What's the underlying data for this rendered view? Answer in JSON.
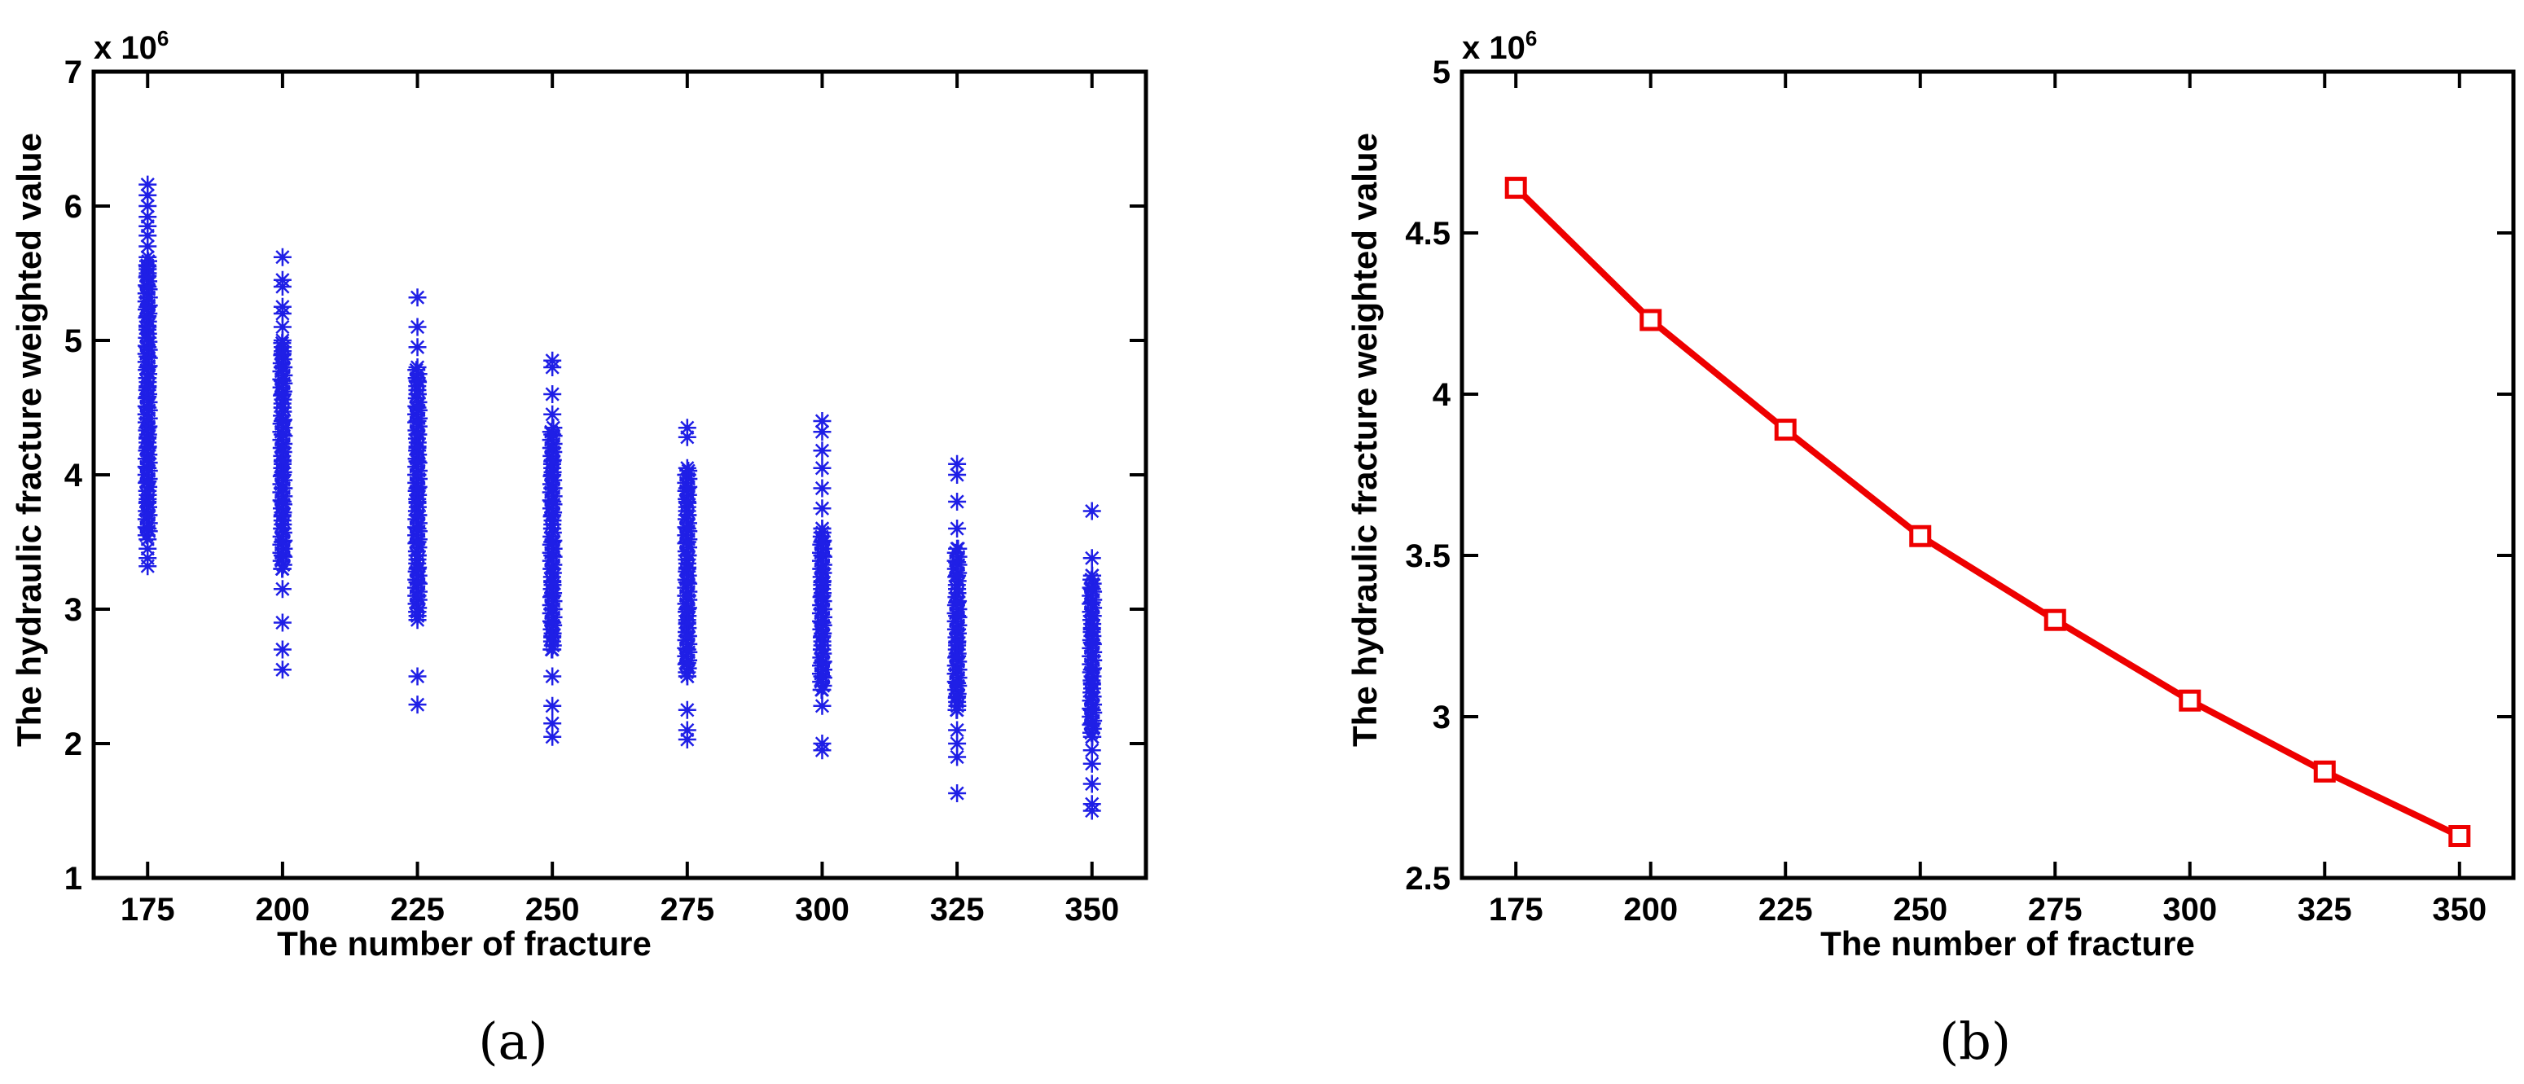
{
  "panels": [
    {
      "label": "(a)"
    },
    {
      "label": "(b)"
    }
  ],
  "chart_data": [
    {
      "type": "scatter",
      "title": "",
      "xlabel": "The number of fracture",
      "ylabel": "The hydraulic fracture weighted value",
      "y_multiplier": {
        "base": "x 10",
        "exponent": "6"
      },
      "xlim": [
        165,
        360
      ],
      "ylim": [
        1,
        7
      ],
      "xticks": [
        175,
        200,
        225,
        250,
        275,
        300,
        325,
        350
      ],
      "yticks": [
        1,
        2,
        3,
        4,
        5,
        6,
        7
      ],
      "marker": "asterisk",
      "color": "#1f1fe6",
      "groups": [
        {
          "x": 175,
          "min": 3.32,
          "max": 6.16,
          "dense_min": 3.55,
          "dense_max": 5.6,
          "points": [
            3.32,
            3.38,
            3.45,
            3.52,
            3.6,
            3.7,
            3.8,
            3.88,
            3.95,
            4.05,
            4.12,
            4.2,
            4.28,
            4.35,
            4.42,
            4.5,
            4.58,
            4.65,
            4.72,
            4.8,
            4.88,
            4.95,
            5.02,
            5.1,
            5.18,
            5.25,
            5.32,
            5.4,
            5.48,
            5.55,
            5.62,
            5.7,
            5.78,
            5.85,
            5.92,
            6.0,
            6.08,
            6.16
          ]
        },
        {
          "x": 200,
          "min": 2.55,
          "max": 5.62,
          "dense_min": 3.3,
          "dense_max": 5.0,
          "points": [
            2.55,
            2.7,
            2.9,
            3.15,
            3.3,
            3.4,
            3.5,
            3.6,
            3.7,
            3.8,
            3.9,
            4.0,
            4.1,
            4.2,
            4.3,
            4.4,
            4.5,
            4.6,
            4.7,
            4.8,
            4.9,
            5.0,
            5.1,
            5.2,
            5.25,
            5.4,
            5.45,
            5.62
          ]
        },
        {
          "x": 225,
          "min": 2.29,
          "max": 5.32,
          "dense_min": 2.95,
          "dense_max": 4.8,
          "points": [
            2.29,
            2.5,
            2.92,
            2.98,
            3.1,
            3.2,
            3.3,
            3.4,
            3.5,
            3.6,
            3.7,
            3.8,
            3.9,
            4.0,
            4.1,
            4.2,
            4.3,
            4.4,
            4.5,
            4.6,
            4.7,
            4.8,
            4.95,
            5.1,
            5.32
          ]
        },
        {
          "x": 250,
          "min": 2.05,
          "max": 4.85,
          "dense_min": 2.7,
          "dense_max": 4.35,
          "points": [
            2.05,
            2.15,
            2.28,
            2.5,
            2.7,
            2.8,
            2.9,
            3.0,
            3.1,
            3.2,
            3.3,
            3.4,
            3.5,
            3.6,
            3.7,
            3.8,
            3.9,
            4.0,
            4.1,
            4.2,
            4.3,
            4.45,
            4.6,
            4.8,
            4.85
          ]
        },
        {
          "x": 275,
          "min": 2.03,
          "max": 4.35,
          "dense_min": 2.5,
          "dense_max": 4.05,
          "points": [
            2.03,
            2.1,
            2.25,
            2.5,
            2.6,
            2.7,
            2.8,
            2.9,
            3.0,
            3.1,
            3.2,
            3.3,
            3.4,
            3.5,
            3.6,
            3.7,
            3.8,
            3.9,
            4.0,
            4.05,
            4.28,
            4.35
          ]
        },
        {
          "x": 300,
          "min": 1.95,
          "max": 4.4,
          "dense_min": 2.4,
          "dense_max": 3.6,
          "points": [
            1.95,
            2.0,
            2.28,
            2.4,
            2.5,
            2.6,
            2.7,
            2.8,
            2.9,
            3.0,
            3.1,
            3.2,
            3.3,
            3.4,
            3.5,
            3.6,
            3.75,
            3.9,
            4.05,
            4.18,
            4.32,
            4.4
          ]
        },
        {
          "x": 325,
          "min": 1.63,
          "max": 4.08,
          "dense_min": 2.25,
          "dense_max": 3.45,
          "points": [
            1.63,
            1.9,
            2.0,
            2.1,
            2.25,
            2.35,
            2.45,
            2.55,
            2.65,
            2.75,
            2.85,
            2.95,
            3.05,
            3.15,
            3.25,
            3.35,
            3.45,
            3.6,
            3.8,
            4.0,
            4.08
          ]
        },
        {
          "x": 350,
          "min": 1.5,
          "max": 3.73,
          "dense_min": 2.05,
          "dense_max": 3.25,
          "points": [
            1.5,
            1.55,
            1.7,
            1.85,
            1.95,
            2.05,
            2.15,
            2.25,
            2.35,
            2.45,
            2.55,
            2.65,
            2.75,
            2.85,
            2.95,
            3.05,
            3.15,
            3.25,
            3.38,
            3.73
          ]
        }
      ]
    },
    {
      "type": "line",
      "title": "",
      "xlabel": "The number of fracture",
      "ylabel": "The hydraulic fracture weighted value",
      "y_multiplier": {
        "base": "x 10",
        "exponent": "6"
      },
      "xlim": [
        165,
        360
      ],
      "ylim": [
        2.5,
        5
      ],
      "xticks": [
        175,
        200,
        225,
        250,
        275,
        300,
        325,
        350
      ],
      "yticks": [
        2.5,
        3,
        3.5,
        4,
        4.5,
        5
      ],
      "ytick_labels": [
        "2.5",
        "3",
        "3.5",
        "4",
        "4.5",
        "5"
      ],
      "marker": "square",
      "color": "#ee0000",
      "x": [
        175,
        200,
        225,
        250,
        275,
        300,
        325,
        350
      ],
      "y": [
        4.64,
        4.23,
        3.89,
        3.56,
        3.3,
        3.05,
        2.83,
        2.63
      ]
    }
  ]
}
